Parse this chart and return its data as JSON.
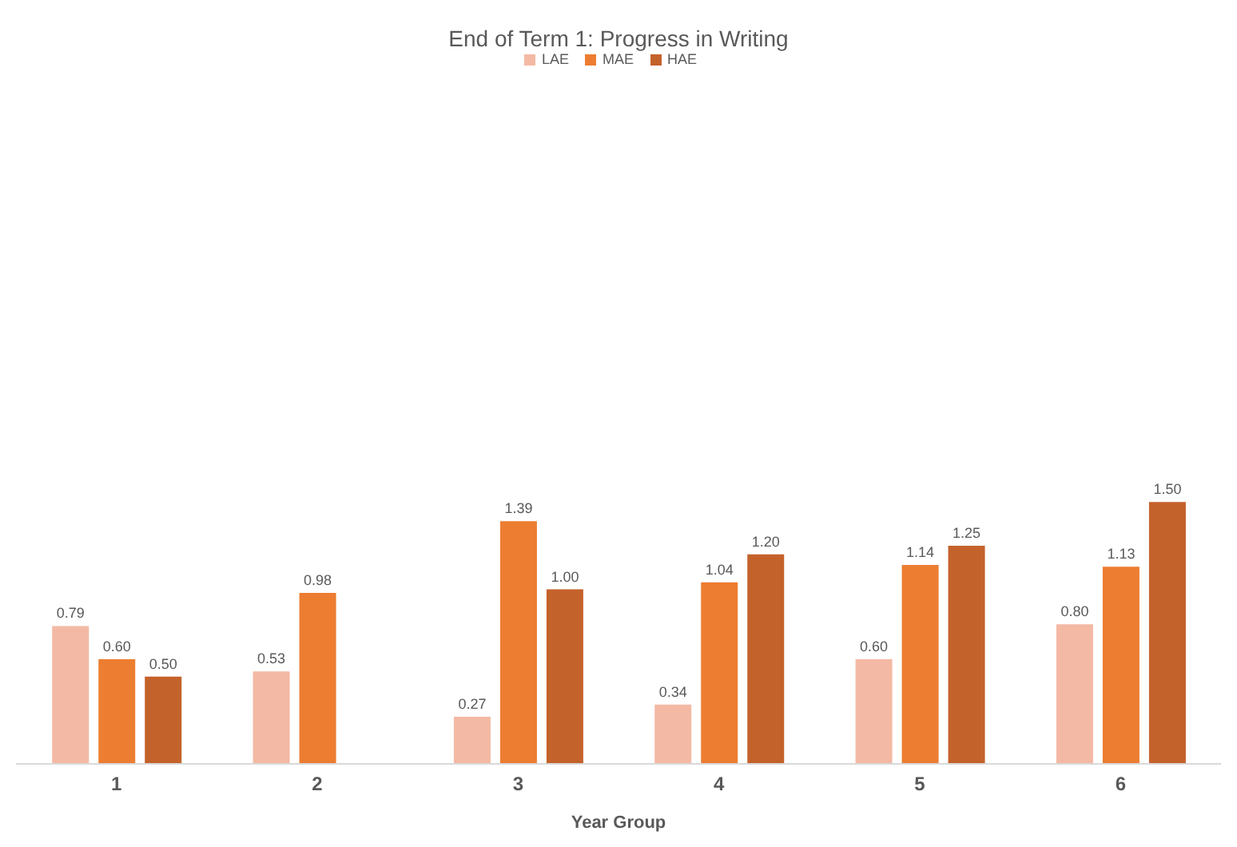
{
  "chart_data": {
    "type": "bar",
    "title": "End of Term 1: Progress in Writing",
    "xlabel": "Year Group",
    "categories": [
      "1",
      "2",
      "3",
      "4",
      "5",
      "6"
    ],
    "series": [
      {
        "name": "LAE",
        "color": "#f4b9a4",
        "values": [
          0.79,
          0.53,
          0.27,
          0.34,
          0.6,
          0.8
        ],
        "value_labels": [
          "0.79",
          "0.53",
          "0.27",
          "0.34",
          "0.60",
          "0.80"
        ]
      },
      {
        "name": "MAE",
        "color": "#ed7d31",
        "values": [
          0.6,
          0.98,
          1.39,
          1.04,
          1.14,
          1.13
        ],
        "value_labels": [
          "0.60",
          "0.98",
          "1.39",
          "1.04",
          "1.14",
          "1.13"
        ]
      },
      {
        "name": "HAE",
        "color": "#c4622b",
        "values": [
          0.5,
          null,
          1.0,
          1.2,
          1.25,
          1.5
        ],
        "value_labels": [
          "0.50",
          null,
          "1.00",
          "1.20",
          "1.25",
          "1.50"
        ]
      }
    ],
    "legend": "top"
  }
}
